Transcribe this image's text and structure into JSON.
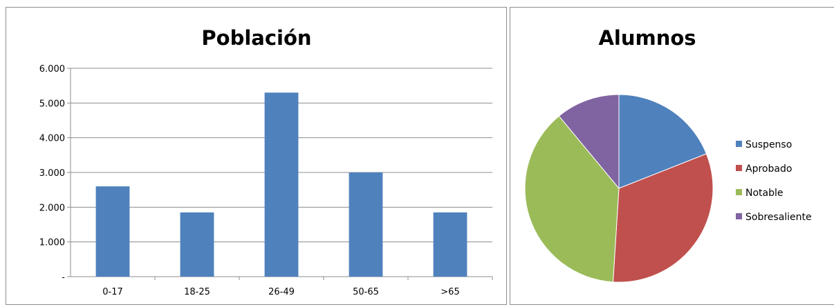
{
  "chart_data": [
    {
      "type": "bar",
      "title": "Población",
      "categories": [
        "0-17",
        "18-25",
        "26-49",
        "50-65",
        ">65"
      ],
      "values": [
        2600,
        1850,
        5300,
        3000,
        1850
      ],
      "ylim": [
        0,
        6000
      ],
      "yticks": [
        0,
        1000,
        2000,
        3000,
        4000,
        5000,
        6000
      ],
      "ytick_labels": [
        "-",
        "1.000",
        "2.000",
        "3.000",
        "4.000",
        "5.000",
        "6.000"
      ],
      "grid": true,
      "color": "#4f81bd"
    },
    {
      "type": "pie",
      "title": "Alumnos",
      "labels": [
        "Suspenso",
        "Aprobado",
        "Notable",
        "Sobresaliente"
      ],
      "values": [
        19,
        32,
        38,
        11
      ],
      "colors": [
        "#4f81bd",
        "#c0504d",
        "#9bbb59",
        "#8064a2"
      ],
      "legend": "right"
    }
  ]
}
